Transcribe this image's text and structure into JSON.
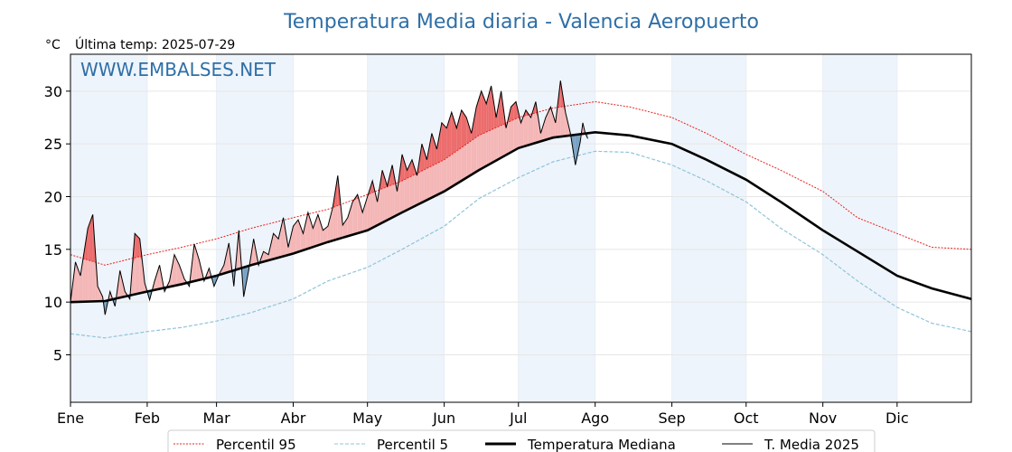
{
  "chart_data": {
    "type": "line",
    "title": "Temperatura Media diaria - Valencia Aeropuerto",
    "unit": "°C",
    "last_update": "Última temp: 2025-07-29",
    "watermark": "WWW.EMBALSES.NET",
    "ylim": [
      0.5,
      33.5
    ],
    "yticks": [
      5,
      10,
      15,
      20,
      25,
      30
    ],
    "months": [
      "Ene",
      "Feb",
      "Mar",
      "Abr",
      "May",
      "Jun",
      "Jul",
      "Ago",
      "Sep",
      "Oct",
      "Nov",
      "Dic"
    ],
    "grid": true,
    "legend_position": "bottom-center",
    "colors": {
      "p95": "#e8211c",
      "p5": "#8fc4d9",
      "median": "#000000",
      "current": "#000000",
      "above_fill": "#f4b6b6",
      "above_extreme_fill": "#ec6c6c",
      "below_fill": "#7aa2c4",
      "band": "#eef4fb",
      "title": "#2e6fa7"
    },
    "series": [
      {
        "name": "Percentil 95",
        "style": "dotted-red",
        "x": [
          1,
          15,
          32,
          46,
          60,
          74,
          91,
          105,
          121,
          135,
          152,
          166,
          182,
          196,
          213,
          227,
          244,
          258,
          274,
          288,
          305,
          319,
          335,
          349,
          365
        ],
        "values": [
          14.5,
          13.5,
          14.5,
          15.2,
          16.0,
          17.0,
          18.0,
          18.8,
          20.2,
          21.5,
          23.5,
          25.8,
          27.5,
          28.4,
          29.0,
          28.5,
          27.5,
          26.0,
          24.0,
          22.5,
          20.5,
          18.0,
          16.5,
          15.2,
          15.0
        ]
      },
      {
        "name": "Percentil 5",
        "style": "dashed-lightblue",
        "x": [
          1,
          15,
          32,
          46,
          60,
          74,
          91,
          105,
          121,
          135,
          152,
          166,
          182,
          196,
          213,
          227,
          244,
          258,
          274,
          288,
          305,
          319,
          335,
          349,
          365
        ],
        "values": [
          7.0,
          6.6,
          7.2,
          7.6,
          8.2,
          9.0,
          10.3,
          12.0,
          13.3,
          15.0,
          17.2,
          19.8,
          21.8,
          23.3,
          24.3,
          24.2,
          23.0,
          21.5,
          19.5,
          17.0,
          14.5,
          12.0,
          9.5,
          8.0,
          7.2
        ]
      },
      {
        "name": "Temperatura Mediana",
        "style": "thick-black",
        "x": [
          1,
          15,
          32,
          46,
          60,
          74,
          91,
          105,
          121,
          135,
          152,
          166,
          182,
          196,
          213,
          227,
          244,
          258,
          274,
          288,
          305,
          319,
          335,
          349,
          365
        ],
        "values": [
          10.0,
          10.1,
          11.0,
          11.7,
          12.5,
          13.5,
          14.6,
          15.7,
          16.8,
          18.5,
          20.5,
          22.5,
          24.6,
          25.6,
          26.1,
          25.8,
          25.0,
          23.5,
          21.6,
          19.5,
          16.8,
          14.8,
          12.5,
          11.3,
          10.3
        ]
      },
      {
        "name": "T. Media 2025",
        "style": "thin-black",
        "x": [
          1,
          3,
          5,
          8,
          10,
          12,
          14,
          15,
          17,
          19,
          21,
          23,
          25,
          27,
          29,
          31,
          33,
          35,
          37,
          39,
          41,
          43,
          45,
          47,
          49,
          51,
          53,
          55,
          57,
          59,
          61,
          63,
          65,
          67,
          69,
          71,
          73,
          75,
          77,
          79,
          81,
          83,
          85,
          87,
          89,
          91,
          93,
          95,
          97,
          99,
          101,
          103,
          105,
          107,
          109,
          111,
          113,
          115,
          117,
          119,
          121,
          123,
          125,
          127,
          129,
          131,
          133,
          135,
          137,
          139,
          141,
          143,
          145,
          147,
          149,
          151,
          153,
          155,
          157,
          159,
          161,
          163,
          165,
          167,
          169,
          171,
          173,
          175,
          177,
          179,
          181,
          183,
          185,
          187,
          189,
          191,
          193,
          195,
          197,
          199,
          201,
          203,
          205,
          207,
          208,
          209,
          210
        ],
        "values": [
          10.0,
          13.8,
          12.5,
          17.0,
          18.3,
          11.5,
          10.5,
          8.8,
          11.0,
          9.6,
          13.0,
          11.0,
          10.3,
          16.5,
          16.0,
          11.8,
          10.2,
          12.0,
          13.5,
          11.0,
          12.0,
          14.5,
          13.5,
          12.2,
          11.5,
          15.5,
          14.0,
          12.0,
          13.2,
          11.5,
          12.6,
          13.5,
          15.6,
          11.5,
          16.8,
          10.5,
          13.0,
          16.0,
          13.5,
          14.8,
          14.5,
          16.5,
          16.0,
          18.0,
          15.2,
          17.2,
          17.8,
          16.5,
          18.5,
          17.0,
          18.3,
          16.8,
          17.2,
          19.0,
          22.0,
          17.3,
          18.0,
          19.5,
          20.2,
          18.5,
          20.0,
          21.5,
          19.5,
          22.5,
          21.0,
          23.0,
          20.5,
          24.0,
          22.5,
          23.5,
          22.0,
          25.0,
          23.5,
          26.0,
          24.5,
          27.0,
          26.5,
          28.0,
          26.5,
          28.2,
          27.5,
          26.0,
          28.5,
          30.0,
          28.8,
          30.5,
          27.5,
          30.0,
          26.5,
          28.5,
          29.0,
          27.0,
          28.2,
          27.5,
          29.0,
          26.0,
          27.5,
          28.5,
          27.0,
          31.0,
          28.0,
          26.0,
          23.0,
          25.2,
          27.0,
          26.0,
          25.5
        ]
      }
    ]
  }
}
